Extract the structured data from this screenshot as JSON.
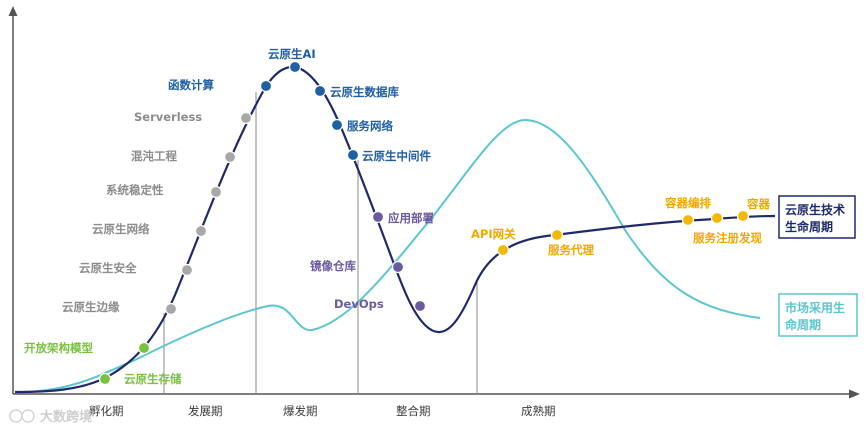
{
  "colors": {
    "tech_curve": "#1e2a6b",
    "market_curve": "#5cc6cf",
    "axis": "#555555",
    "dot_gray": "#a8a8a8",
    "dot_blue": "#1f5fa3",
    "dot_purple": "#6a5aa0",
    "dot_yellow": "#f5b800",
    "dot_green": "#7ac142"
  },
  "phases": [
    "孵化期",
    "发展期",
    "爆发期",
    "整合期",
    "成熟期"
  ],
  "points": {
    "green": [
      "开放架构模型",
      "云原生存储"
    ],
    "gray": [
      "云原生边缘",
      "云原生安全",
      "云原生网络",
      "系统稳定性",
      "混沌工程",
      "Serverless"
    ],
    "blue": [
      "函数计算",
      "云原生AI",
      "云原生数据库",
      "服务网络",
      "云原生中间件"
    ],
    "purple": [
      "应用部署",
      "镜像仓库",
      "DevOps"
    ],
    "yellow": [
      "API网关",
      "服务代理",
      "容器编排",
      "容器",
      "服务注册发现"
    ]
  },
  "legend": {
    "tech_line1": "云原生技术",
    "tech_line2": "生命周期",
    "market_line1": "市场采用生",
    "market_line2": "命周期"
  },
  "watermark": "大数跨境"
}
